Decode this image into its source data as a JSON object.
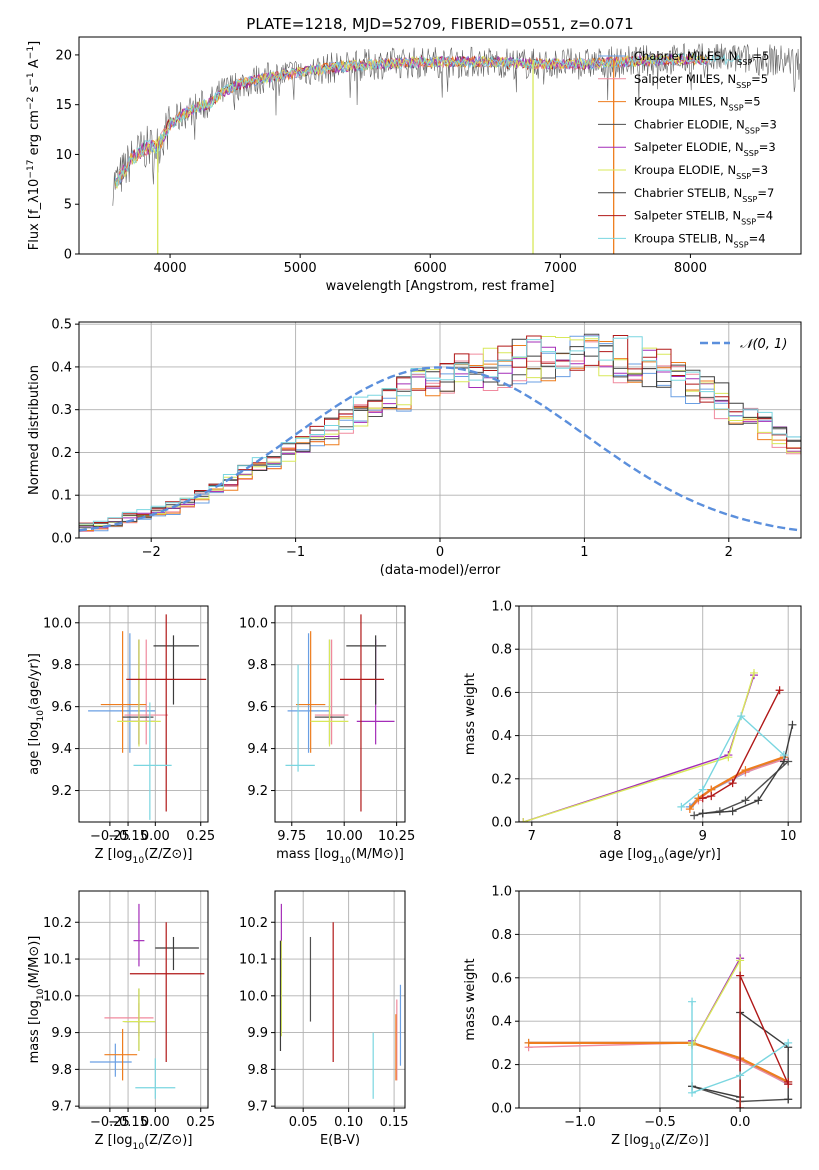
{
  "title": "PLATE=1218, MJD=52709, FIBERID=0551, z=0.071",
  "colors": [
    "#6a9fe3",
    "#f08a9e",
    "#ee7d1e",
    "#4f4f4f",
    "#a42db8",
    "#d8e85a",
    "#3c3c3c",
    "#b01818",
    "#7ad6e0"
  ],
  "chart_data": [
    {
      "id": "spectrum",
      "type": "line",
      "title": "PLATE=1218, MJD=52709, FIBERID=0551, z=0.071",
      "xlabel": "wavelength [Angstrom, rest frame]",
      "ylabel": "Flux [f_λ10^-17 erg cm^-2 s^-1 A^-1]",
      "xlim": [
        3300,
        8850
      ],
      "ylim": [
        0,
        21.8
      ],
      "xticks": [
        "4000",
        "5000",
        "6000",
        "7000",
        "8000"
      ],
      "yticks": [
        "0",
        "5",
        "10",
        "15",
        "20"
      ],
      "grid": false,
      "legend_position": "right",
      "x": [
        3550,
        3600,
        3700,
        3800,
        3900,
        4000,
        4100,
        4200,
        4300,
        4400,
        4500,
        4700,
        5000,
        5300,
        5600,
        6000,
        6400,
        6800,
        7200,
        7600,
        8000,
        8400,
        8800
      ],
      "continuum": [
        7.0,
        7.4,
        9.5,
        10.6,
        10.8,
        13.0,
        14.0,
        14.7,
        15.1,
        16.2,
        16.9,
        17.6,
        18.3,
        18.8,
        19.1,
        19.3,
        19.3,
        19.1,
        19.1,
        19.4,
        19.6,
        19.6,
        19.4
      ],
      "series": [
        {
          "name": "Chabrier MILES, N_SSP=5"
        },
        {
          "name": "Salpeter MILES, N_SSP=5"
        },
        {
          "name": "Kroupa MILES, N_SSP=5"
        },
        {
          "name": "Chabrier ELODIE, N_SSP=3"
        },
        {
          "name": "Salpeter ELODIE, N_SSP=3"
        },
        {
          "name": "Kroupa ELODIE, N_SSP=3"
        },
        {
          "name": "Chabrier STELIB, N_SSP=7"
        },
        {
          "name": "Salpeter STELIB, N_SSP=4"
        },
        {
          "name": "Kroupa STELIB, N_SSP=4"
        }
      ]
    },
    {
      "id": "residuals",
      "type": "line",
      "xlabel": "(data-model)/error",
      "ylabel": "Normed distribution",
      "xlim": [
        -2.5,
        2.5
      ],
      "ylim": [
        0,
        0.505
      ],
      "xticks": [
        -2,
        -1,
        0,
        1,
        2
      ],
      "xtick_labels": [
        "−2",
        "−1",
        "0",
        "1",
        "2"
      ],
      "yticks": [
        0.0,
        0.1,
        0.2,
        0.3,
        0.4,
        0.5
      ],
      "ytick_labels": [
        "0.0",
        "0.1",
        "0.2",
        "0.3",
        "0.4",
        "0.5"
      ],
      "grid": true,
      "legend": "𝒩(0, 1)",
      "legend_position": "top-right",
      "bin_width": 0.1,
      "histogram_mean": [
        0.025,
        0.027,
        0.035,
        0.045,
        0.052,
        0.06,
        0.07,
        0.085,
        0.1,
        0.115,
        0.13,
        0.15,
        0.165,
        0.18,
        0.195,
        0.21,
        0.23,
        0.25,
        0.27,
        0.29,
        0.31,
        0.325,
        0.34,
        0.355,
        0.37,
        0.38,
        0.39,
        0.395,
        0.4,
        0.405,
        0.415,
        0.42,
        0.42,
        0.425,
        0.43,
        0.43,
        0.425,
        0.42,
        0.415,
        0.4,
        0.39,
        0.375,
        0.36,
        0.34,
        0.32,
        0.3,
        0.28,
        0.26,
        0.24,
        0.22,
        0.2,
        0.18,
        0.16,
        0.14,
        0.125,
        0.11,
        0.095,
        0.08,
        0.065,
        0.055,
        0.045,
        0.037,
        0.03,
        0.026,
        0.022,
        0.02,
        0.018,
        0.017,
        0.016,
        0.015
      ]
    },
    {
      "id": "age-vs-Z",
      "type": "scatter",
      "xlabel": "Z [log10(Z/Z⊙)]",
      "ylabel": "age [log10(age/yr)]",
      "xlim": [
        -0.42,
        0.29
      ],
      "ylim": [
        9.05,
        10.08
      ],
      "xticks": [
        -0.25,
        -0.15,
        0.0,
        0.25
      ],
      "xtick_labels": [
        "−0.25",
        "−0.15",
        "0.00",
        "0.25"
      ],
      "yticks": [
        9.2,
        9.4,
        9.6,
        9.8,
        10.0
      ],
      "ytick_labels": [
        "9.2",
        "9.4",
        "9.6",
        "9.8",
        "10.0"
      ],
      "grid": true,
      "points": [
        {
          "x": -0.14,
          "y": 9.58,
          "xerr": [
            0.23,
            0.14
          ],
          "yerr": [
            0.2,
            0.37
          ]
        },
        {
          "x": -0.05,
          "y": 9.56,
          "xerr": [
            0.12,
            0.12
          ],
          "yerr": [
            0.14,
            0.36
          ]
        },
        {
          "x": -0.18,
          "y": 9.61,
          "xerr": [
            0.12,
            0.13
          ],
          "yerr": [
            0.23,
            0.35
          ]
        },
        {
          "x": -0.09,
          "y": 9.55,
          "xerr": [
            0.09,
            0.08
          ],
          "yerr": [
            0.13,
            0.37
          ]
        },
        {
          "x": -0.09,
          "y": 9.53,
          "xerr": [
            0.09,
            0.09
          ],
          "yerr": [
            0.11,
            0.39
          ]
        },
        {
          "x": -0.09,
          "y": 9.53,
          "xerr": [
            0.12,
            0.12
          ],
          "yerr": [
            0.12,
            0.39
          ]
        },
        {
          "x": 0.1,
          "y": 9.89,
          "xerr": [
            0.11,
            0.14
          ],
          "yerr": [
            0.28,
            0.05
          ]
        },
        {
          "x": 0.06,
          "y": 9.73,
          "xerr": [
            0.22,
            0.22
          ],
          "yerr": [
            0.63,
            0.31
          ]
        },
        {
          "x": -0.03,
          "y": 9.32,
          "xerr": [
            0.09,
            0.12
          ],
          "yerr": [
            0.26,
            0.3
          ]
        }
      ]
    },
    {
      "id": "age-vs-mass",
      "type": "scatter",
      "xlabel": "mass [log10(M/M⊙)]",
      "ylabel": "",
      "xlim": [
        9.67,
        10.29
      ],
      "ylim": [
        9.05,
        10.08
      ],
      "xticks": [
        9.75,
        10.0,
        10.25
      ],
      "xtick_labels": [
        "9.75",
        "10.00",
        "10.25"
      ],
      "yticks": [
        9.2,
        9.4,
        9.6,
        9.8,
        10.0
      ],
      "ytick_labels": [
        "9.2",
        "9.4",
        "9.6",
        "9.8",
        "10.0"
      ],
      "grid": true,
      "points": [
        {
          "x": 9.83,
          "y": 9.58,
          "xerr": [
            0.1,
            0.1
          ],
          "yerr": [
            0.2,
            0.37
          ]
        },
        {
          "x": 9.94,
          "y": 9.56,
          "xerr": [
            0.08,
            0.08
          ],
          "yerr": [
            0.14,
            0.36
          ]
        },
        {
          "x": 9.84,
          "y": 9.61,
          "xerr": [
            0.07,
            0.07
          ],
          "yerr": [
            0.23,
            0.35
          ]
        },
        {
          "x": 9.93,
          "y": 9.55,
          "xerr": [
            0.07,
            0.07
          ],
          "yerr": [
            0.13,
            0.37
          ]
        },
        {
          "x": 10.15,
          "y": 9.53,
          "xerr": [
            0.09,
            0.09
          ],
          "yerr": [
            0.11,
            0.39
          ]
        },
        {
          "x": 9.93,
          "y": 9.53,
          "xerr": [
            0.09,
            0.09
          ],
          "yerr": [
            0.12,
            0.39
          ]
        },
        {
          "x": 10.15,
          "y": 9.89,
          "xerr": [
            0.14,
            0.05
          ],
          "yerr": [
            0.28,
            0.05
          ]
        },
        {
          "x": 10.08,
          "y": 9.73,
          "xerr": [
            0.1,
            0.11
          ],
          "yerr": [
            0.63,
            0.31
          ]
        },
        {
          "x": 9.78,
          "y": 9.32,
          "xerr": [
            0.06,
            0.08
          ],
          "yerr": [
            0.03,
            0.48
          ]
        }
      ]
    },
    {
      "id": "weight-vs-age",
      "type": "line",
      "xlabel": "age [log10(age/yr)]",
      "ylabel": "mass weight",
      "xlim": [
        6.85,
        10.15
      ],
      "ylim": [
        0,
        1.0
      ],
      "xticks": [
        7,
        8,
        9,
        10
      ],
      "xtick_labels": [
        "7",
        "8",
        "9",
        "10"
      ],
      "yticks": [
        0.0,
        0.2,
        0.4,
        0.6,
        0.8,
        1.0
      ],
      "ytick_labels": [
        "0.0",
        "0.2",
        "0.4",
        "0.6",
        "0.8",
        "1.0"
      ],
      "grid": true,
      "series": [
        {
          "x": [
            8.85,
            8.95,
            9.1,
            9.5,
            9.95
          ],
          "y": [
            0.07,
            0.11,
            0.15,
            0.23,
            0.3
          ]
        },
        {
          "x": [
            8.85,
            8.95,
            9.1,
            9.5,
            9.95
          ],
          "y": [
            0.06,
            0.1,
            0.15,
            0.23,
            0.29
          ]
        },
        {
          "x": [
            8.85,
            8.95,
            9.1,
            9.5,
            9.95
          ],
          "y": [
            0.06,
            0.11,
            0.15,
            0.24,
            0.3
          ]
        },
        {
          "x": [
            8.9,
            9.0,
            9.2,
            9.5,
            10.0
          ],
          "y": [
            0.03,
            0.04,
            0.05,
            0.1,
            0.28
          ]
        },
        {
          "x": [
            6.9,
            9.3,
            9.6
          ],
          "y": [
            0.0,
            0.31,
            0.68
          ]
        },
        {
          "x": [
            6.9,
            9.3,
            9.6
          ],
          "y": [
            0.0,
            0.3,
            0.69
          ]
        },
        {
          "x": [
            9.0,
            9.35,
            9.65,
            9.95,
            10.05
          ],
          "y": [
            0.04,
            0.05,
            0.1,
            0.28,
            0.45
          ]
        },
        {
          "x": [
            9.0,
            9.1,
            9.35,
            9.9
          ],
          "y": [
            0.11,
            0.12,
            0.18,
            0.61
          ]
        },
        {
          "x": [
            8.75,
            9.0,
            9.45,
            9.95
          ],
          "y": [
            0.07,
            0.15,
            0.49,
            0.31
          ]
        }
      ]
    },
    {
      "id": "mass-vs-Z",
      "type": "scatter",
      "xlabel": "Z [log10(Z/Z⊙)]",
      "ylabel": "mass [log10(M/M⊙)]",
      "xlim": [
        -0.42,
        0.29
      ],
      "ylim": [
        9.695,
        10.285
      ],
      "xticks": [
        -0.25,
        -0.15,
        0.0,
        0.25
      ],
      "xtick_labels": [
        "−0.25",
        "−0.15",
        "0.00",
        "0.25"
      ],
      "yticks": [
        9.7,
        9.8,
        9.9,
        10.0,
        10.1,
        10.2
      ],
      "ytick_labels": [
        "9.7",
        "9.8",
        "9.9",
        "10.0",
        "10.1",
        "10.2"
      ],
      "grid": true,
      "points": [
        {
          "x": -0.22,
          "y": 9.82,
          "xerr": [
            0.14,
            0.09
          ],
          "yerr": [
            0.04,
            0.05
          ]
        },
        {
          "x": -0.09,
          "y": 9.94,
          "xerr": [
            0.19,
            0.08
          ],
          "yerr": [
            0.05,
            0.04
          ]
        },
        {
          "x": -0.18,
          "y": 9.84,
          "xerr": [
            0.1,
            0.08
          ],
          "yerr": [
            0.07,
            0.07
          ]
        },
        {
          "x": -0.09,
          "y": 9.93,
          "xerr": [
            0.08,
            0.09
          ],
          "yerr": [
            0.08,
            0.09
          ]
        },
        {
          "x": -0.09,
          "y": 10.15,
          "xerr": [
            0.03,
            0.03
          ],
          "yerr": [
            0.07,
            0.1
          ]
        },
        {
          "x": -0.09,
          "y": 9.93,
          "xerr": [
            0.09,
            0.09
          ],
          "yerr": [
            0.08,
            0.09
          ]
        },
        {
          "x": 0.1,
          "y": 10.13,
          "xerr": [
            0.1,
            0.14
          ],
          "yerr": [
            0.06,
            0.03
          ]
        },
        {
          "x": 0.06,
          "y": 10.06,
          "xerr": [
            0.2,
            0.21
          ],
          "yerr": [
            0.24,
            0.14
          ]
        },
        {
          "x": 0.0,
          "y": 9.75,
          "xerr": [
            0.11,
            0.11
          ],
          "yerr": [
            0.03,
            0.08
          ]
        }
      ]
    },
    {
      "id": "mass-vs-ebv",
      "type": "scatter",
      "xlabel": "E(B-V)",
      "ylabel": "",
      "xlim": [
        0.019,
        0.162
      ],
      "ylim": [
        9.695,
        10.285
      ],
      "xticks": [
        0.05,
        0.1,
        0.15
      ],
      "xtick_labels": [
        "0.05",
        "0.10",
        "0.15"
      ],
      "yticks": [
        9.7,
        9.8,
        9.9,
        10.0,
        10.1,
        10.2
      ],
      "ytick_labels": [
        "9.7",
        "9.8",
        "9.9",
        "10.0",
        "10.1",
        "10.2"
      ],
      "grid": true,
      "points": [
        {
          "x": 0.157,
          "y": 9.92,
          "xerr": [
            0,
            0
          ],
          "yerr": [
            0.11,
            0.11
          ]
        },
        {
          "x": 0.153,
          "y": 9.88,
          "xerr": [
            0,
            0
          ],
          "yerr": [
            0.11,
            0.11
          ]
        },
        {
          "x": 0.152,
          "y": 9.86,
          "xerr": [
            0,
            0
          ],
          "yerr": [
            0.09,
            0.09
          ]
        },
        {
          "x": 0.058,
          "y": 10.04,
          "xerr": [
            0,
            0
          ],
          "yerr": [
            0.11,
            0.12
          ]
        },
        {
          "x": 0.026,
          "y": 10.15,
          "xerr": [
            0,
            0
          ],
          "yerr": [
            0.1,
            0.1
          ]
        },
        {
          "x": 0.026,
          "y": 10.02,
          "xerr": [
            0,
            0
          ],
          "yerr": [
            0.13,
            0.13
          ]
        },
        {
          "x": 0.025,
          "y": 10.0,
          "xerr": [
            0,
            0
          ],
          "yerr": [
            0.15,
            0.15
          ]
        },
        {
          "x": 0.083,
          "y": 10.01,
          "xerr": [
            0,
            0
          ],
          "yerr": [
            0.19,
            0.19
          ]
        },
        {
          "x": 0.127,
          "y": 9.81,
          "xerr": [
            0,
            0
          ],
          "yerr": [
            0.09,
            0.09
          ]
        }
      ]
    },
    {
      "id": "weight-vs-Z",
      "type": "line",
      "xlabel": "Z [log10(Z/Z⊙)]",
      "ylabel": "mass weight",
      "xlim": [
        -1.38,
        0.38
      ],
      "ylim": [
        0,
        1.0
      ],
      "xticks": [
        -1.0,
        -0.5,
        0.0
      ],
      "xtick_labels": [
        "−1.0",
        "−0.5",
        "0.0"
      ],
      "yticks": [
        0.0,
        0.2,
        0.4,
        0.6,
        0.8,
        1.0
      ],
      "ytick_labels": [
        "0.0",
        "0.2",
        "0.4",
        "0.6",
        "0.8",
        "1.0"
      ],
      "grid": true,
      "series": [
        {
          "x": [
            -1.32,
            -0.3,
            0.0,
            0.3
          ],
          "y": [
            0.3,
            0.3,
            0.23,
            0.11
          ]
        },
        {
          "x": [
            -1.32,
            -0.3,
            0.0,
            0.3
          ],
          "y": [
            0.28,
            0.3,
            0.22,
            0.11
          ]
        },
        {
          "x": [
            -1.32,
            -0.3,
            0.0,
            0.3
          ],
          "y": [
            0.3,
            0.3,
            0.23,
            0.12
          ]
        },
        {
          "x": [
            -0.3,
            0.0,
            0.3
          ],
          "y": [
            0.1,
            0.03,
            0.04
          ]
        },
        {
          "x": [
            -0.3,
            -0.3,
            0.0,
            0.0
          ],
          "y": [
            0.31,
            0.29,
            0.69,
            0.0
          ]
        },
        {
          "x": [
            -0.3,
            -0.3,
            0.0,
            0.0
          ],
          "y": [
            0.3,
            0.29,
            0.68,
            0.0
          ]
        },
        {
          "x": [
            -0.3,
            0.0,
            0.0,
            0.3,
            0.3
          ],
          "y": [
            0.1,
            0.05,
            0.44,
            0.28,
            0.04
          ]
        },
        {
          "x": [
            0.0,
            0.0,
            0.3,
            0.3
          ],
          "y": [
            0.0,
            0.61,
            0.11,
            0.12
          ]
        },
        {
          "x": [
            -0.3,
            -0.3,
            0.0,
            0.3
          ],
          "y": [
            0.49,
            0.07,
            0.15,
            0.3
          ]
        }
      ]
    }
  ]
}
